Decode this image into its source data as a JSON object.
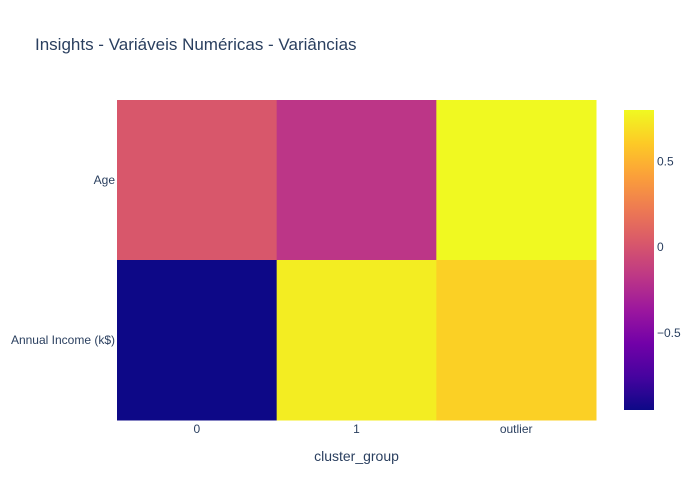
{
  "chart_data": {
    "type": "heatmap",
    "title": "Insights - Variáveis Numéricas - Variâncias",
    "xlabel": "cluster_group",
    "ylabel": "",
    "x": [
      "0",
      "1",
      "outlier"
    ],
    "y": [
      "Age",
      "Annual Income (k$)"
    ],
    "z": [
      [
        0.02,
        -0.18,
        0.8
      ],
      [
        -0.95,
        0.75,
        0.63
      ]
    ],
    "zlim": [
      -0.95,
      0.8
    ],
    "colorscale": [
      [
        0.0,
        "#0d0887"
      ],
      [
        0.1111,
        "#46039f"
      ],
      [
        0.2222,
        "#7201a8"
      ],
      [
        0.3333,
        "#9c179e"
      ],
      [
        0.4444,
        "#bd3786"
      ],
      [
        0.5556,
        "#d8576b"
      ],
      [
        0.6667,
        "#ed7953"
      ],
      [
        0.7778,
        "#fb9f3a"
      ],
      [
        0.8889,
        "#fdca26"
      ],
      [
        1.0,
        "#f0f921"
      ]
    ],
    "colorbar_ticks": [
      {
        "value": 0.5,
        "label": "0.5"
      },
      {
        "value": 0,
        "label": "0"
      },
      {
        "value": -0.5,
        "label": "−0.5"
      }
    ],
    "grid": false,
    "legend": "colorbar-right"
  }
}
